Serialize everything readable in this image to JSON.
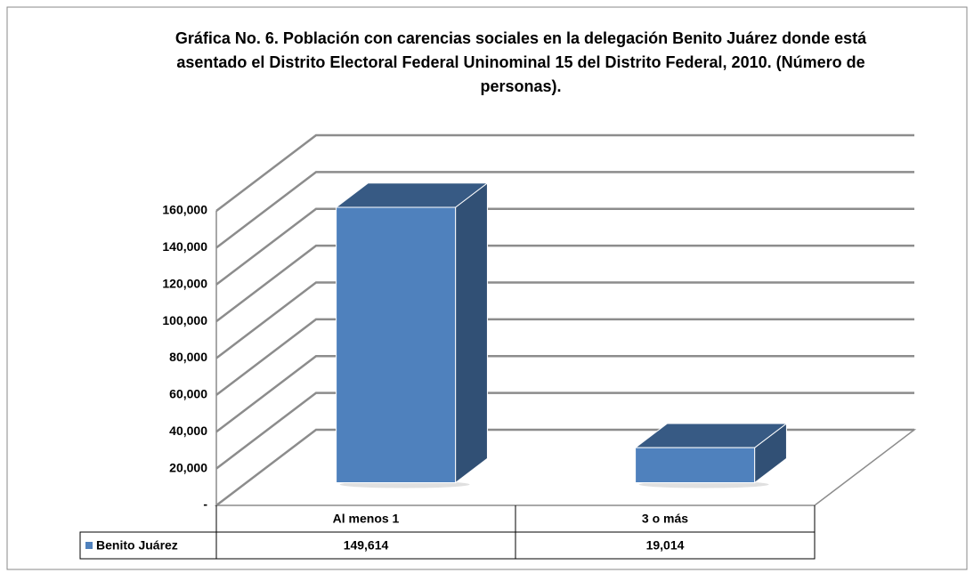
{
  "chart_data": {
    "type": "bar3d",
    "title": "Gráfica No. 6. Población con carencias sociales en la delegación Benito Juárez donde está asentado el Distrito Electoral  Federal Uninominal 15 del Distrito Federal, 2010. (Número de personas).",
    "categories": [
      "Al menos 1",
      "3 o más"
    ],
    "series": [
      {
        "name": "Benito Juárez",
        "color": "#4f81bd",
        "values": [
          149614,
          19014
        ],
        "value_labels": [
          "149,614",
          "19,014"
        ]
      }
    ],
    "ylim": [
      0,
      160000
    ],
    "yticks": [
      {
        "value": 0,
        "label": "-"
      },
      {
        "value": 20000,
        "label": "20,000"
      },
      {
        "value": 40000,
        "label": "40,000"
      },
      {
        "value": 60000,
        "label": "60,000"
      },
      {
        "value": 80000,
        "label": "80,000"
      },
      {
        "value": 100000,
        "label": "100,000"
      },
      {
        "value": 120000,
        "label": "120,000"
      },
      {
        "value": 140000,
        "label": "140,000"
      },
      {
        "value": 160000,
        "label": "160,000"
      }
    ],
    "grid": true,
    "data_table": true
  }
}
